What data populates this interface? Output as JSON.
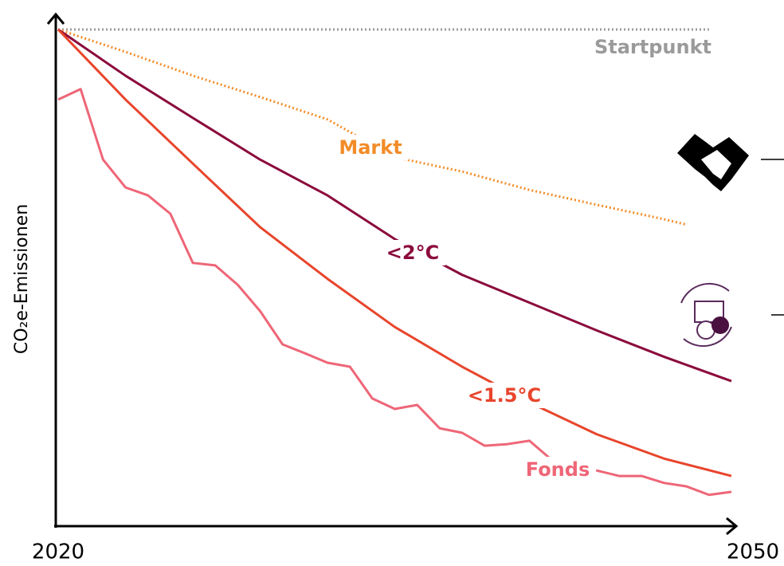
{
  "chart_data": {
    "type": "line",
    "ylabel": "CO₂e-Emissionen",
    "xlim": [
      2020,
      2050
    ],
    "ylim": [
      0,
      100
    ],
    "xticks": [
      2020,
      2050
    ],
    "series": [
      {
        "name": "Startpunkt",
        "color": "#9a9a9a",
        "style": "dotted",
        "x": [
          2020,
          2049
        ],
        "values": [
          100,
          100
        ]
      },
      {
        "name": "Markt",
        "color": "#f28c28",
        "style": "dotted",
        "x": [
          2020,
          2023,
          2026,
          2029,
          2032,
          2035,
          2038,
          2041,
          2044,
          2047,
          2048
        ],
        "values": [
          100,
          95.5,
          90.7,
          86.4,
          81.9,
          74.3,
          71.4,
          67.7,
          64.7,
          61.8,
          60.7
        ]
      },
      {
        "name": "<2°C",
        "color": "#8b0a3c",
        "style": "solid",
        "x": [
          2020,
          2023,
          2026,
          2029,
          2032,
          2035,
          2038,
          2041,
          2044,
          2047,
          2050
        ],
        "values": [
          100,
          90.7,
          82.2,
          73.8,
          66.6,
          57.8,
          50.6,
          45.0,
          39.4,
          34.1,
          29.2
        ]
      },
      {
        "name": "<1.5°C",
        "color": "#e8452c",
        "style": "solid",
        "x": [
          2020,
          2023,
          2026,
          2029,
          2032,
          2035,
          2038,
          2041,
          2044,
          2047,
          2050
        ],
        "values": [
          100,
          85.9,
          73.0,
          60.2,
          49.8,
          40.1,
          32.1,
          24.9,
          18.5,
          13.6,
          10.1
        ]
      },
      {
        "name": "Fonds",
        "color": "#ee6677",
        "style": "solid",
        "x": [
          2020,
          2021,
          2022,
          2023,
          2024,
          2025,
          2026,
          2027,
          2028,
          2029,
          2030,
          2031,
          2032,
          2033,
          2034,
          2035,
          2036,
          2037,
          2038,
          2039,
          2040,
          2041,
          2042,
          2043,
          2044,
          2045,
          2046,
          2047,
          2048,
          2049,
          2050
        ],
        "values": [
          85.9,
          88.0,
          73.8,
          68.2,
          66.6,
          62.9,
          53.0,
          52.5,
          48.6,
          43.3,
          36.6,
          34.8,
          32.9,
          32.1,
          25.7,
          23.6,
          24.4,
          19.7,
          18.8,
          16.2,
          16.5,
          17.2,
          13.3,
          12.2,
          11.2,
          10.1,
          10.1,
          8.7,
          8.0,
          6.3,
          6.9
        ]
      }
    ]
  }
}
